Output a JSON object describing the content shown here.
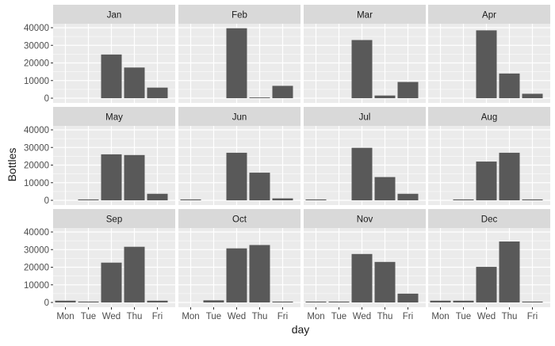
{
  "chart_data": {
    "type": "bar",
    "layout": "facet-grid-3x4",
    "xlabel": "day",
    "ylabel": "Bottles",
    "categories": [
      "Mon",
      "Tue",
      "Wed",
      "Thu",
      "Fri"
    ],
    "y_ticks": [
      0,
      10000,
      20000,
      30000,
      40000
    ],
    "y_tick_labels": [
      "0",
      "10000",
      "20000",
      "30000",
      "40000"
    ],
    "ylim": [
      0,
      41500
    ],
    "grid": true,
    "colors": {
      "bar": "#595959",
      "panel_bg": "#ebebeb",
      "strip_bg": "#d9d9d9",
      "grid": "#ffffff",
      "tick_text": "#4d4d4d",
      "title_text": "#1a1a1a"
    },
    "facets": [
      {
        "label": "Jan",
        "values": [
          0,
          0,
          24800,
          17400,
          6000
        ]
      },
      {
        "label": "Feb",
        "values": [
          0,
          0,
          39700,
          400,
          7000
        ]
      },
      {
        "label": "Mar",
        "values": [
          0,
          0,
          33000,
          1500,
          9200
        ]
      },
      {
        "label": "Apr",
        "values": [
          0,
          0,
          38500,
          14000,
          2500
        ]
      },
      {
        "label": "May",
        "values": [
          0,
          500,
          26100,
          25700,
          3700
        ]
      },
      {
        "label": "Jun",
        "values": [
          500,
          0,
          27000,
          15700,
          1100
        ]
      },
      {
        "label": "Jul",
        "values": [
          500,
          0,
          29800,
          13200,
          3700
        ]
      },
      {
        "label": "Aug",
        "values": [
          0,
          500,
          22000,
          27000,
          500
        ]
      },
      {
        "label": "Sep",
        "values": [
          1000,
          500,
          22600,
          31600,
          1000
        ]
      },
      {
        "label": "Oct",
        "values": [
          0,
          1200,
          30700,
          32600,
          500
        ]
      },
      {
        "label": "Nov",
        "values": [
          500,
          500,
          27500,
          23000,
          5000
        ]
      },
      {
        "label": "Dec",
        "values": [
          1000,
          1000,
          20200,
          34600,
          500
        ]
      }
    ]
  }
}
